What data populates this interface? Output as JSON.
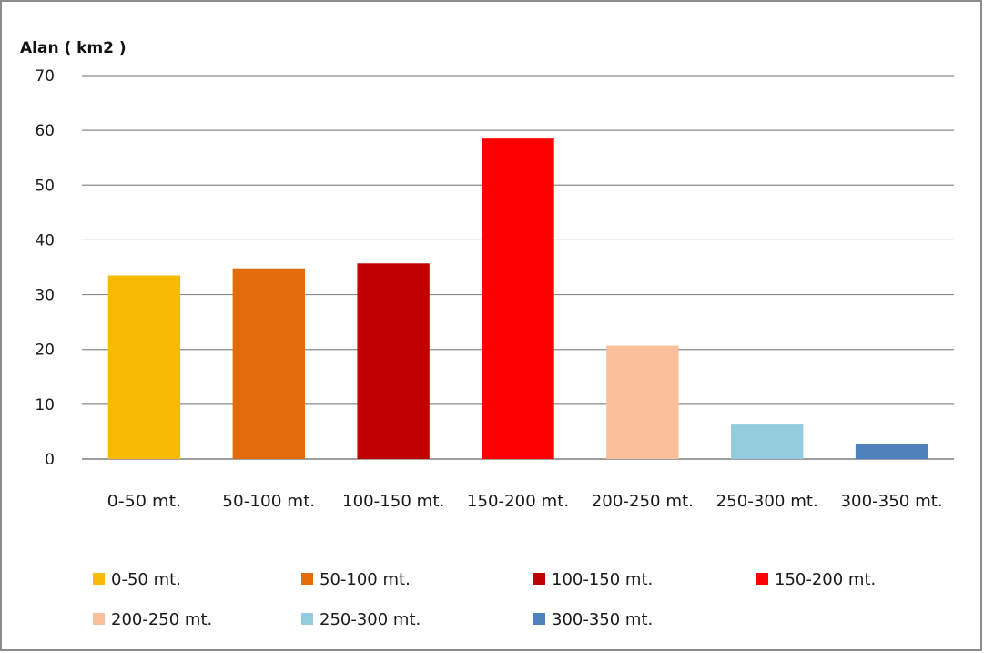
{
  "chart_data": {
    "type": "bar",
    "title": "",
    "ylabel": "Alan  ( km2 )",
    "xlabel": "",
    "ylim": [
      0,
      70
    ],
    "yticks": [
      0,
      10,
      20,
      30,
      40,
      50,
      60,
      70
    ],
    "grid": true,
    "legend_position": "bottom",
    "categories": [
      "0-50 mt.",
      "50-100 mt.",
      "100-150 mt.",
      "150-200 mt.",
      "200-250 mt.",
      "250-300 mt.",
      "300-350 mt."
    ],
    "values": [
      33.5,
      34.8,
      35.7,
      58.5,
      20.7,
      6.3,
      2.8
    ],
    "colors": [
      "#f7bb05",
      "#e36c0a",
      "#c00000",
      "#ff0000",
      "#f9c19b",
      "#93cddd",
      "#4f81bd"
    ]
  }
}
